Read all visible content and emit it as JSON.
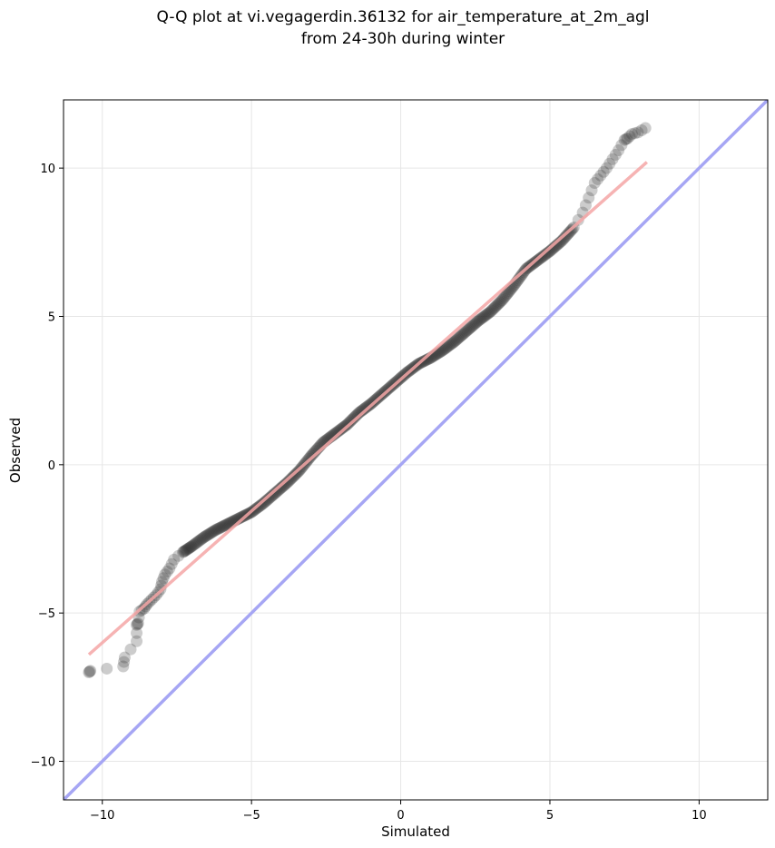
{
  "chart_data": {
    "type": "scatter",
    "title": "Q-Q plot at vi.vegagerdin.36132 for air_temperature_at_2m_agl",
    "subtitle": "from 24-30h during winter",
    "xlabel": "Simulated",
    "ylabel": "Observed",
    "xlim": [
      -11.3,
      12.3
    ],
    "ylim": [
      -11.3,
      12.3
    ],
    "xticks": [
      -10,
      -5,
      0,
      5,
      10
    ],
    "yticks": [
      -10,
      -5,
      0,
      5,
      10
    ],
    "xtick_labels": [
      "−10",
      "−5",
      "0",
      "5",
      "10"
    ],
    "ytick_labels": [
      "−10",
      "−5",
      "0",
      "5",
      "10"
    ],
    "grid": true,
    "series": [
      {
        "kind": "quantiles",
        "color": "#333333",
        "points": [
          [
            -10.45,
            -7.0
          ],
          [
            -10.4,
            -6.95
          ],
          [
            -9.3,
            -6.8
          ],
          [
            -9.25,
            -6.5
          ],
          [
            -8.85,
            -5.95
          ],
          [
            -8.85,
            -5.4
          ],
          [
            -8.8,
            -5.35
          ],
          [
            -8.75,
            -4.95
          ],
          [
            -8.6,
            -4.85
          ],
          [
            -8.5,
            -4.7
          ],
          [
            -8.35,
            -4.55
          ],
          [
            -8.2,
            -4.4
          ],
          [
            -8.05,
            -4.2
          ],
          [
            -8.0,
            -3.95
          ],
          [
            -7.9,
            -3.7
          ],
          [
            -7.75,
            -3.5
          ],
          [
            -7.6,
            -3.2
          ],
          [
            -7.3,
            -2.95
          ],
          [
            -7.0,
            -2.75
          ],
          [
            -6.6,
            -2.45
          ],
          [
            -6.2,
            -2.2
          ],
          [
            -5.8,
            -2.0
          ],
          [
            -5.4,
            -1.8
          ],
          [
            -5.0,
            -1.6
          ],
          [
            -4.6,
            -1.3
          ],
          [
            -4.2,
            -0.95
          ],
          [
            -3.8,
            -0.6
          ],
          [
            -3.4,
            -0.2
          ],
          [
            -3.0,
            0.3
          ],
          [
            -2.6,
            0.75
          ],
          [
            -2.2,
            1.05
          ],
          [
            -1.8,
            1.35
          ],
          [
            -1.4,
            1.75
          ],
          [
            -1.0,
            2.05
          ],
          [
            -0.6,
            2.4
          ],
          [
            -0.2,
            2.75
          ],
          [
            0.2,
            3.1
          ],
          [
            0.6,
            3.4
          ],
          [
            1.0,
            3.6
          ],
          [
            1.4,
            3.85
          ],
          [
            1.8,
            4.15
          ],
          [
            2.2,
            4.5
          ],
          [
            2.6,
            4.85
          ],
          [
            3.0,
            5.15
          ],
          [
            3.4,
            5.55
          ],
          [
            3.8,
            6.05
          ],
          [
            4.2,
            6.6
          ],
          [
            4.6,
            6.9
          ],
          [
            5.0,
            7.2
          ],
          [
            5.4,
            7.55
          ],
          [
            5.8,
            8.0
          ],
          [
            6.1,
            8.5
          ],
          [
            6.3,
            9.0
          ],
          [
            6.5,
            9.5
          ],
          [
            6.7,
            9.75
          ],
          [
            6.9,
            10.0
          ],
          [
            7.1,
            10.3
          ],
          [
            7.3,
            10.6
          ],
          [
            7.5,
            10.95
          ],
          [
            7.6,
            11.0
          ],
          [
            7.75,
            11.15
          ],
          [
            7.95,
            11.2
          ],
          [
            8.2,
            11.35
          ]
        ]
      },
      {
        "kind": "fit-line",
        "color": "#f4a6a6",
        "points": [
          [
            -10.45,
            -6.4
          ],
          [
            8.25,
            10.2
          ]
        ]
      },
      {
        "kind": "identity-line",
        "color": "#a6a6f4",
        "points": [
          [
            -11.3,
            -11.3
          ],
          [
            12.3,
            12.3
          ]
        ]
      }
    ]
  }
}
